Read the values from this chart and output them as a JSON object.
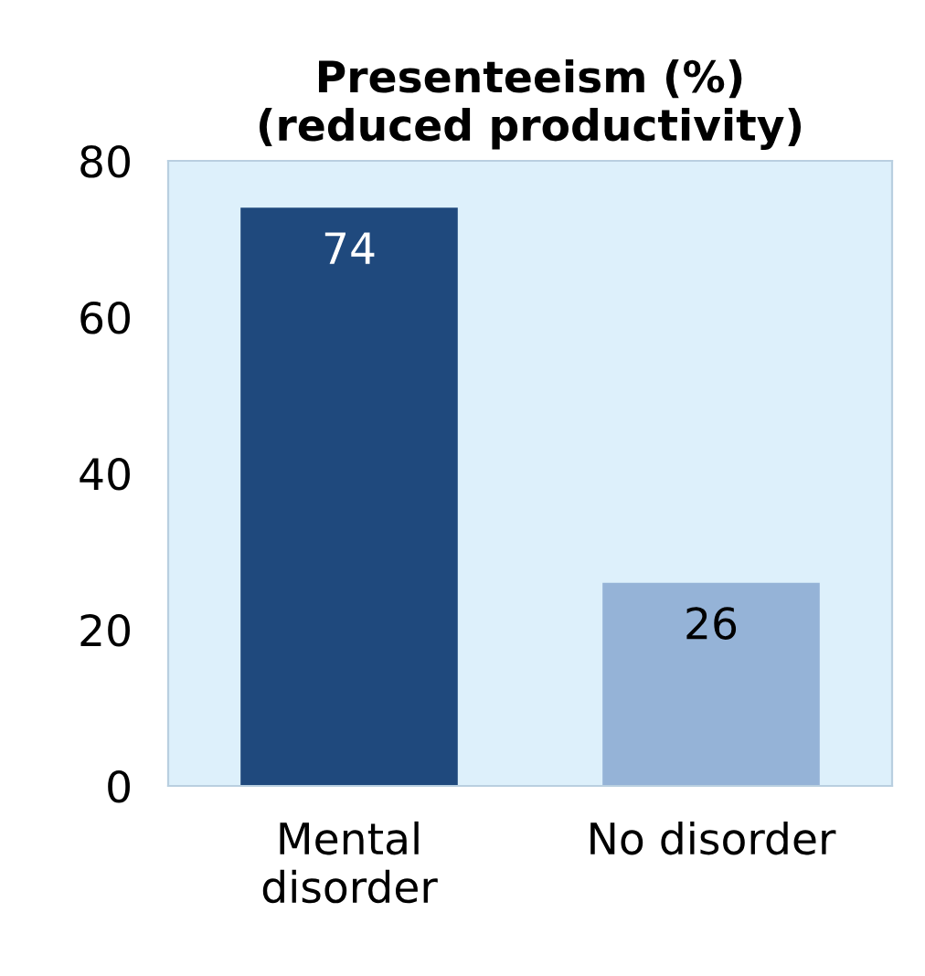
{
  "chart_data": {
    "type": "bar",
    "title": "Presenteeism (%)\n(reduced productivity)",
    "categories": [
      "Mental\ndisorder",
      "No disorder"
    ],
    "values": [
      74,
      26
    ],
    "colors": [
      "#1f497d",
      "#95b3d7"
    ],
    "ylim": [
      0,
      80
    ],
    "yticks": [
      0,
      20,
      40,
      60,
      80
    ],
    "data_labels": true,
    "grid": false,
    "legend": false
  }
}
